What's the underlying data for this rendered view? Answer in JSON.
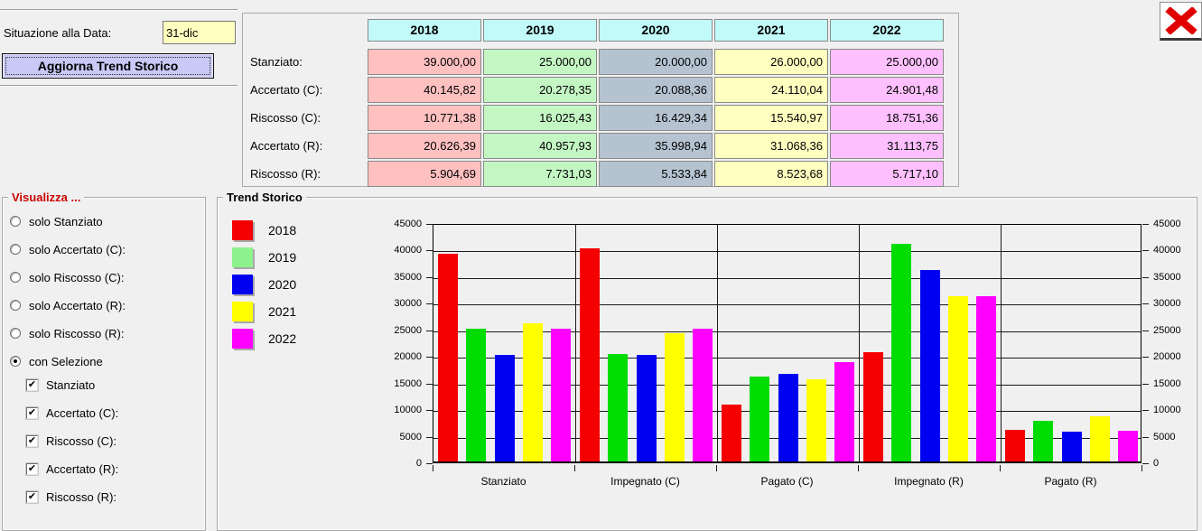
{
  "toolbar": {
    "situation_label": "Situazione alla Data:",
    "date_value": "31-dic",
    "update_button_label": "Aggiorna Trend Storico"
  },
  "summary_table": {
    "years": [
      "2018",
      "2019",
      "2020",
      "2021",
      "2022"
    ],
    "year_colors": [
      "#FFC0C0",
      "#C4F6C4",
      "#B5C3D1",
      "#FFFFC0",
      "#FFC0FF"
    ],
    "header_bg": "#C2FAFA",
    "rows": [
      {
        "label": "Stanziato:",
        "values": [
          "39.000,00",
          "25.000,00",
          "20.000,00",
          "26.000,00",
          "25.000,00"
        ]
      },
      {
        "label": "Accertato (C):",
        "values": [
          "40.145,82",
          "20.278,35",
          "20.088,36",
          "24.110,04",
          "24.901,48"
        ]
      },
      {
        "label": "Riscosso (C):",
        "values": [
          "10.771,38",
          "16.025,43",
          "16.429,34",
          "15.540,97",
          "18.751,36"
        ]
      },
      {
        "label": "Accertato (R):",
        "values": [
          "20.626,39",
          "40.957,93",
          "35.998,94",
          "31.068,36",
          "31.113,75"
        ]
      },
      {
        "label": "Riscosso (R):",
        "values": [
          "5.904,69",
          "7.731,03",
          "5.533,84",
          "8.523,68",
          "5.717,10"
        ]
      }
    ]
  },
  "visualizza": {
    "title": "Visualizza ...",
    "radios": [
      {
        "label": "solo Stanziato",
        "selected": false
      },
      {
        "label": "solo Accertato (C):",
        "selected": false
      },
      {
        "label": "solo Riscosso (C):",
        "selected": false
      },
      {
        "label": "solo Accertato (R):",
        "selected": false
      },
      {
        "label": "solo Riscosso (R):",
        "selected": false
      },
      {
        "label": "con Selezione",
        "selected": true
      }
    ],
    "checkboxes": [
      {
        "label": "Stanziato",
        "checked": true
      },
      {
        "label": "Accertato (C):",
        "checked": true
      },
      {
        "label": "Riscosso (C):",
        "checked": true
      },
      {
        "label": "Accertato (R):",
        "checked": true
      },
      {
        "label": "Riscosso (R):",
        "checked": true
      }
    ]
  },
  "trend": {
    "title": "Trend Storico"
  },
  "chart_data": {
    "type": "bar",
    "title": "Trend Storico",
    "categories": [
      "Stanziato",
      "Impegnato (C)",
      "Pagato (C)",
      "Impegnato (R)",
      "Pagato (R)"
    ],
    "series": [
      {
        "name": "2018",
        "color": "#F40000",
        "legend_color": "#F40000",
        "values": [
          39000,
          40145.82,
          10771.38,
          20626.39,
          5904.69
        ]
      },
      {
        "name": "2019",
        "color": "#00DC00",
        "legend_color": "#8DF28D",
        "values": [
          25000,
          20278.35,
          16025.43,
          40957.93,
          7731.03
        ]
      },
      {
        "name": "2020",
        "color": "#0000F0",
        "legend_color": "#0000F0",
        "values": [
          20000,
          20088.36,
          16429.34,
          35998.94,
          5533.84
        ]
      },
      {
        "name": "2021",
        "color": "#FFFF00",
        "legend_color": "#FFFF00",
        "values": [
          26000,
          24110.04,
          15540.97,
          31068.36,
          8523.68
        ]
      },
      {
        "name": "2022",
        "color": "#FF00FF",
        "legend_color": "#FF00FF",
        "values": [
          25000,
          24901.48,
          18751.36,
          31113.75,
          5717.1
        ]
      }
    ],
    "ylim": [
      0,
      45000
    ],
    "ytick_step": 5000,
    "yticks": [
      0,
      5000,
      10000,
      15000,
      20000,
      25000,
      30000,
      35000,
      40000,
      45000
    ],
    "grid": true,
    "legend_position": "left",
    "checkmark_glyph": "✔"
  },
  "colors": {
    "window_bg": "#F0F0F0",
    "input_bg": "#FFFFC0",
    "button_bg": "#C9C9F6",
    "close_x": "#E10000",
    "visualizza_title": "#CC0000"
  }
}
